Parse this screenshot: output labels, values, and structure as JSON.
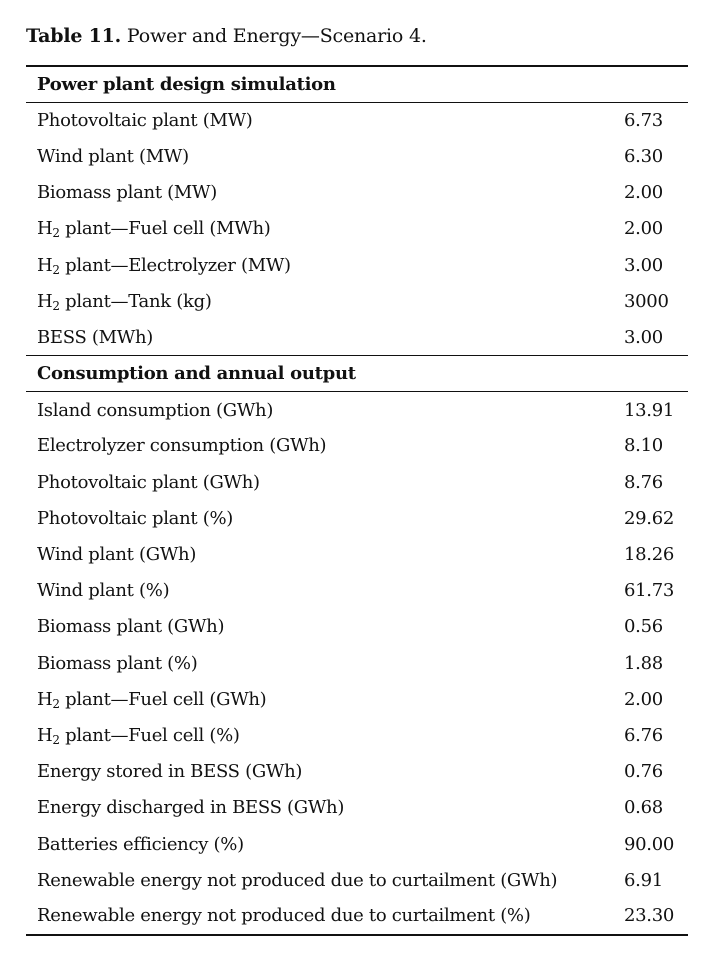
{
  "caption": {
    "label": "Table 11.",
    "text": " Power and Energy—Scenario 4."
  },
  "sections": [
    {
      "title": "Power plant design simulation",
      "rows": [
        {
          "pre": "Photovoltaic plant (MW)",
          "sub": "",
          "post": "",
          "value": "6.73"
        },
        {
          "pre": "Wind plant (MW)",
          "sub": "",
          "post": "",
          "value": "6.30"
        },
        {
          "pre": "Biomass plant (MW)",
          "sub": "",
          "post": "",
          "value": "2.00"
        },
        {
          "pre": "H",
          "sub": "2",
          "post": " plant—Fuel cell (MWh)",
          "value": "2.00"
        },
        {
          "pre": "H",
          "sub": "2",
          "post": " plant—Electrolyzer (MW)",
          "value": "3.00"
        },
        {
          "pre": "H",
          "sub": "2",
          "post": " plant—Tank (kg)",
          "value": "3000"
        },
        {
          "pre": "BESS (MWh)",
          "sub": "",
          "post": "",
          "value": "3.00"
        }
      ]
    },
    {
      "title": "Consumption and annual output",
      "rows": [
        {
          "pre": "Island consumption (GWh)",
          "sub": "",
          "post": "",
          "value": "13.91"
        },
        {
          "pre": "Electrolyzer consumption (GWh)",
          "sub": "",
          "post": "",
          "value": "8.10"
        },
        {
          "pre": "Photovoltaic plant (GWh)",
          "sub": "",
          "post": "",
          "value": "8.76"
        },
        {
          "pre": "Photovoltaic plant (%)",
          "sub": "",
          "post": "",
          "value": "29.62"
        },
        {
          "pre": "Wind plant (GWh)",
          "sub": "",
          "post": "",
          "value": "18.26"
        },
        {
          "pre": "Wind plant (%)",
          "sub": "",
          "post": "",
          "value": "61.73"
        },
        {
          "pre": "Biomass plant (GWh)",
          "sub": "",
          "post": "",
          "value": "0.56"
        },
        {
          "pre": "Biomass plant (%)",
          "sub": "",
          "post": "",
          "value": "1.88"
        },
        {
          "pre": "H",
          "sub": "2",
          "post": " plant—Fuel cell (GWh)",
          "value": "2.00"
        },
        {
          "pre": "H",
          "sub": "2",
          "post": " plant—Fuel cell (%)",
          "value": "6.76"
        },
        {
          "pre": "Energy stored in BESS (GWh)",
          "sub": "",
          "post": "",
          "value": "0.76"
        },
        {
          "pre": "Energy discharged in BESS (GWh)",
          "sub": "",
          "post": "",
          "value": "0.68"
        },
        {
          "pre": "Batteries efficiency (%)",
          "sub": "",
          "post": "",
          "value": "90.00"
        },
        {
          "pre": "Renewable energy not produced due to curtailment (GWh)",
          "sub": "",
          "post": "",
          "value": "6.91"
        },
        {
          "pre": "Renewable energy not produced due to curtailment (%)",
          "sub": "",
          "post": "",
          "value": "23.30"
        }
      ]
    }
  ]
}
